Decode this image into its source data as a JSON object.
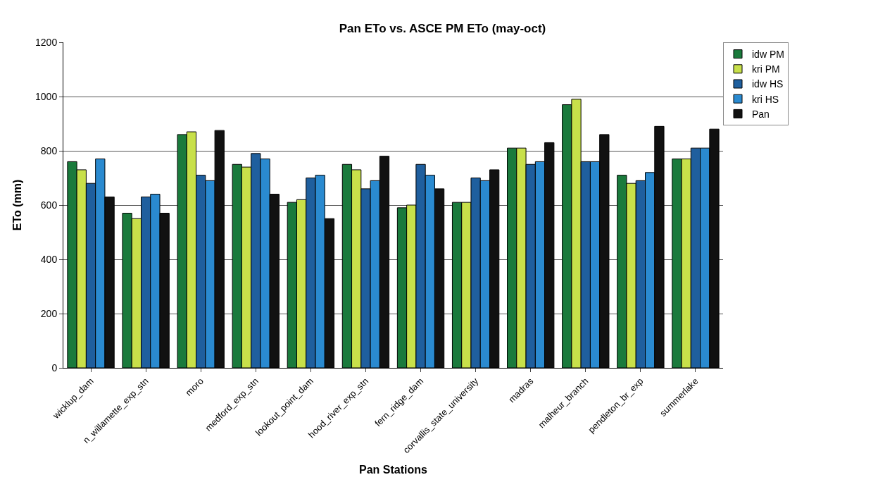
{
  "chart_data": {
    "type": "bar",
    "title": "Pan ETo vs. ASCE PM ETo (may-oct)",
    "xlabel": "Pan Stations",
    "ylabel": "ETo (mm)",
    "categories": [
      "wicklup_dam",
      "n_willamette_exp_stn",
      "moro",
      "medford_exp_stn",
      "lookout_point_dam",
      "hood_river_exp_stn",
      "fern_ridge_dam",
      "corvallis_state_university",
      "madras",
      "malheur_branch",
      "pendleton_br_exp",
      "summerlake"
    ],
    "series": [
      {
        "name": "idw PM",
        "color": "#1a7a3c",
        "values": [
          760,
          570,
          860,
          750,
          610,
          750,
          590,
          610,
          810,
          970,
          710,
          770
        ]
      },
      {
        "name": "kri PM",
        "color": "#c8e04a",
        "values": [
          730,
          550,
          870,
          740,
          620,
          730,
          600,
          610,
          810,
          990,
          680,
          770
        ]
      },
      {
        "name": "idw HS",
        "color": "#1f5f9e",
        "values": [
          680,
          630,
          710,
          790,
          700,
          660,
          750,
          700,
          750,
          760,
          690,
          810
        ]
      },
      {
        "name": "kri HS",
        "color": "#2a8ad0",
        "values": [
          770,
          640,
          690,
          770,
          710,
          690,
          710,
          690,
          760,
          760,
          720,
          810
        ]
      },
      {
        "name": "Pan",
        "color": "#111111",
        "values": [
          630,
          570,
          875,
          640,
          550,
          780,
          660,
          730,
          830,
          860,
          890,
          880
        ]
      }
    ],
    "ylim": [
      0,
      1200
    ],
    "yticks": [
      0,
      200,
      400,
      600,
      800,
      1000,
      1200
    ],
    "grid": "y",
    "legend": "top right"
  }
}
